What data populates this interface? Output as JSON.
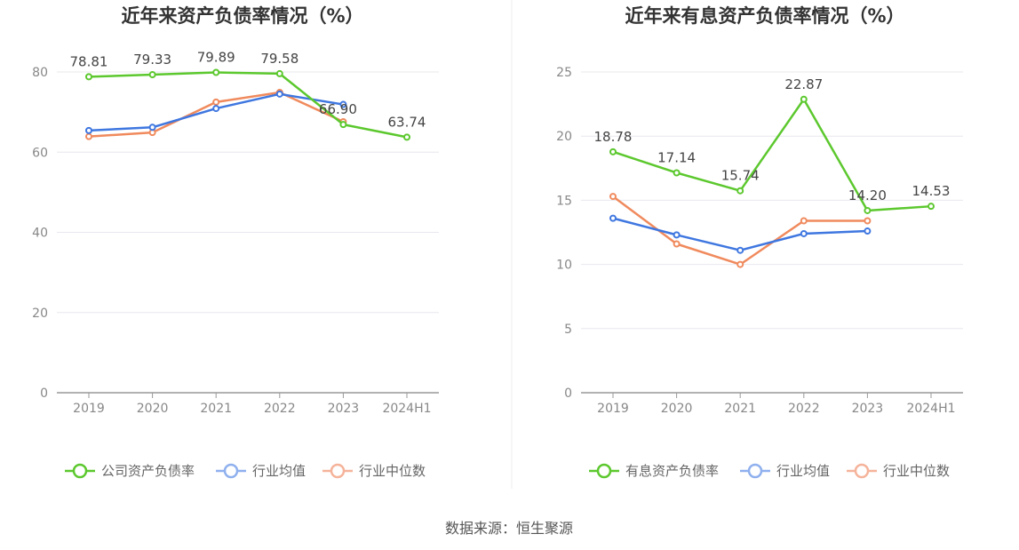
{
  "source": "数据来源：恒生聚源",
  "chart_data": [
    {
      "type": "line",
      "title": "近年来资产负债率情况（%）",
      "xlabel": "",
      "ylabel": "",
      "categories": [
        "2019",
        "2020",
        "2021",
        "2022",
        "2023",
        "2024H1"
      ],
      "ylim": [
        0,
        90
      ],
      "yticks": [
        0,
        20,
        40,
        60,
        80
      ],
      "grid": true,
      "legend_position": "bottom",
      "series": [
        {
          "name": "公司资产负债率",
          "color": "#5cc82e",
          "values": [
            78.81,
            79.33,
            79.89,
            79.58,
            66.9,
            63.74
          ],
          "labels": [
            "78.81",
            "79.33",
            "79.89",
            "79.58",
            "66.90",
            "63.74"
          ]
        },
        {
          "name": "行业均值",
          "color": "#3f77e0",
          "values": [
            65.4,
            66.2,
            70.9,
            74.5,
            71.9,
            null
          ]
        },
        {
          "name": "行业中位数",
          "color": "#f08a5d",
          "values": [
            63.9,
            64.9,
            72.5,
            74.9,
            67.6,
            null
          ]
        }
      ]
    },
    {
      "type": "line",
      "title": "近年来有息资产负债率情况（%）",
      "xlabel": "",
      "ylabel": "",
      "categories": [
        "2019",
        "2020",
        "2021",
        "2022",
        "2023",
        "2024H1"
      ],
      "ylim": [
        0,
        25
      ],
      "yticks": [
        0,
        5,
        10,
        15,
        20,
        25
      ],
      "grid": true,
      "legend_position": "bottom",
      "series": [
        {
          "name": "有息资产负债率",
          "color": "#5cc82e",
          "values": [
            18.78,
            17.14,
            15.74,
            22.87,
            14.2,
            14.53
          ],
          "labels": [
            "18.78",
            "17.14",
            "15.74",
            "22.87",
            "14.20",
            "14.53"
          ]
        },
        {
          "name": "行业均值",
          "color": "#3f77e0",
          "values": [
            13.6,
            12.3,
            11.1,
            12.4,
            12.6,
            null
          ]
        },
        {
          "name": "行业中位数",
          "color": "#f08a5d",
          "values": [
            15.3,
            11.6,
            10.0,
            13.4,
            13.4,
            null
          ]
        }
      ]
    }
  ],
  "colors": {
    "legend_primary": "#5cc82e",
    "legend_mean": "#8fb0ee",
    "legend_median": "#f5b39a",
    "grid": "#e8e8ef",
    "axis": "#999999"
  }
}
